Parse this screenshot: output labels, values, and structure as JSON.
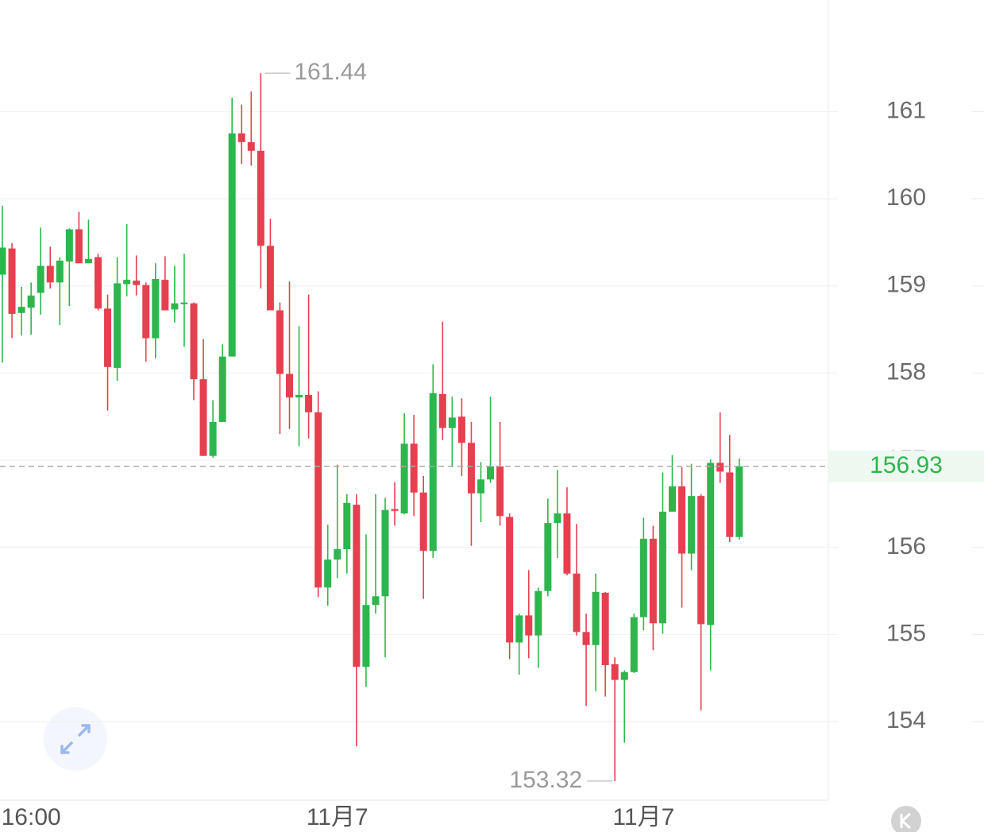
{
  "chart_data": {
    "type": "candlestick",
    "categories": [
      null,
      null,
      null,
      "16:00",
      null,
      null,
      null,
      null,
      null,
      null,
      null,
      null,
      null,
      null,
      null,
      null,
      null,
      null,
      null,
      null,
      null,
      null,
      null,
      null,
      null,
      null,
      null,
      null,
      null,
      null,
      null,
      null,
      null,
      null,
      null,
      "11月7",
      null,
      null,
      null,
      null,
      null,
      null,
      null,
      null,
      null,
      null,
      null,
      null,
      null,
      null,
      null,
      null,
      null,
      null,
      null,
      null,
      null,
      null,
      null,
      null,
      null,
      null,
      null,
      null,
      null,
      null,
      null,
      "11月7",
      null,
      null,
      null,
      null,
      null,
      null,
      null,
      null,
      null,
      null
    ],
    "open": [
      159.13,
      159.43,
      158.69,
      158.75,
      158.92,
      159.23,
      159.04,
      159.28,
      159.65,
      159.26,
      159.33,
      158.74,
      158.06,
      159.02,
      159.06,
      159.01,
      158.4,
      159.07,
      158.73,
      158.79,
      158.8,
      157.93,
      157.05,
      157.44,
      158.19,
      160.75,
      160.65,
      160.55,
      159.46,
      158.72,
      157.99,
      157.72,
      157.75,
      157.55,
      155.54,
      155.86,
      155.98,
      156.49,
      154.63,
      155.34,
      155.44,
      156.44,
      156.39,
      157.19,
      156.63,
      155.96,
      157.76,
      157.37,
      157.5,
      157.2,
      156.62,
      156.78,
      156.93,
      156.35,
      154.91,
      155.22,
      154.99,
      155.5,
      156.28,
      156.39,
      155.7,
      155.03,
      154.88,
      155.48,
      154.66,
      154.48,
      154.57,
      155.2,
      156.1,
      155.13,
      156.41,
      156.7,
      155.93,
      156.59,
      155.11,
      156.97,
      156.86,
      156.12
    ],
    "high": [
      159.92,
      159.49,
      158.99,
      159.04,
      159.67,
      159.45,
      159.33,
      159.66,
      159.85,
      159.76,
      159.37,
      158.9,
      159.33,
      159.71,
      159.35,
      159.04,
      159.26,
      159.34,
      159.23,
      159.37,
      158.81,
      158.39,
      157.69,
      158.33,
      161.16,
      161.08,
      161.23,
      161.44,
      159.77,
      158.81,
      159.05,
      158.54,
      158.9,
      157.79,
      156.26,
      156.95,
      156.61,
      156.61,
      156.15,
      156.61,
      156.57,
      156.75,
      157.54,
      157.52,
      156.82,
      158.1,
      158.59,
      157.73,
      157.71,
      157.44,
      156.98,
      157.73,
      157.44,
      156.39,
      155.24,
      155.74,
      155.54,
      156.56,
      156.89,
      156.69,
      156.27,
      155.24,
      155.7,
      155.49,
      154.74,
      154.59,
      155.24,
      156.34,
      156.25,
      156.86,
      157.06,
      156.92,
      156.96,
      156.61,
      157.01,
      157.55,
      157.29,
      157.02
    ],
    "low": [
      158.12,
      158.4,
      158.43,
      158.44,
      158.67,
      158.97,
      158.55,
      158.77,
      159.26,
      159.26,
      158.72,
      157.57,
      157.91,
      158.88,
      158.89,
      158.13,
      158.17,
      158.72,
      158.58,
      158.3,
      157.69,
      157.05,
      157.03,
      157.44,
      158.19,
      160.4,
      160.38,
      158.97,
      158.72,
      157.3,
      157.36,
      157.16,
      157.25,
      155.43,
      155.33,
      155.65,
      155.7,
      153.72,
      154.4,
      155.24,
      154.74,
      156.25,
      156.38,
      156.36,
      155.41,
      155.88,
      157.23,
      156.92,
      156.82,
      156.02,
      156.29,
      156.74,
      156.25,
      154.72,
      154.54,
      154.73,
      154.62,
      155.44,
      155.88,
      155.68,
      154.99,
      154.18,
      154.35,
      154.29,
      153.32,
      153.76,
      154.56,
      155.05,
      154.82,
      155.01,
      156.41,
      155.31,
      155.74,
      154.13,
      154.59,
      156.74,
      156.06,
      156.09
    ],
    "close": [
      159.44,
      158.68,
      158.76,
      158.89,
      159.23,
      159.04,
      159.29,
      159.65,
      159.26,
      159.31,
      158.74,
      158.07,
      159.03,
      159.07,
      159.01,
      158.4,
      159.08,
      158.72,
      158.8,
      158.81,
      157.93,
      157.05,
      157.44,
      158.19,
      160.75,
      160.65,
      160.55,
      159.46,
      158.72,
      157.99,
      157.72,
      157.75,
      157.55,
      155.54,
      155.86,
      155.98,
      156.51,
      154.63,
      155.34,
      155.44,
      156.43,
      156.42,
      157.19,
      156.63,
      155.96,
      157.77,
      157.37,
      157.49,
      157.2,
      156.62,
      156.78,
      156.93,
      156.36,
      154.91,
      155.22,
      154.99,
      155.5,
      156.28,
      156.39,
      155.7,
      155.03,
      154.88,
      155.49,
      154.65,
      154.48,
      154.57,
      155.2,
      156.1,
      155.13,
      156.41,
      156.7,
      155.93,
      156.59,
      155.12,
      156.97,
      156.87,
      156.12,
      156.93
    ],
    "up_color": "#2db64d",
    "down_color": "#e5404f",
    "ylim": [
      153.1,
      162.28
    ],
    "yticks": [
      154,
      155,
      156,
      157,
      158,
      159,
      160,
      161
    ],
    "grid": true
  }
}
